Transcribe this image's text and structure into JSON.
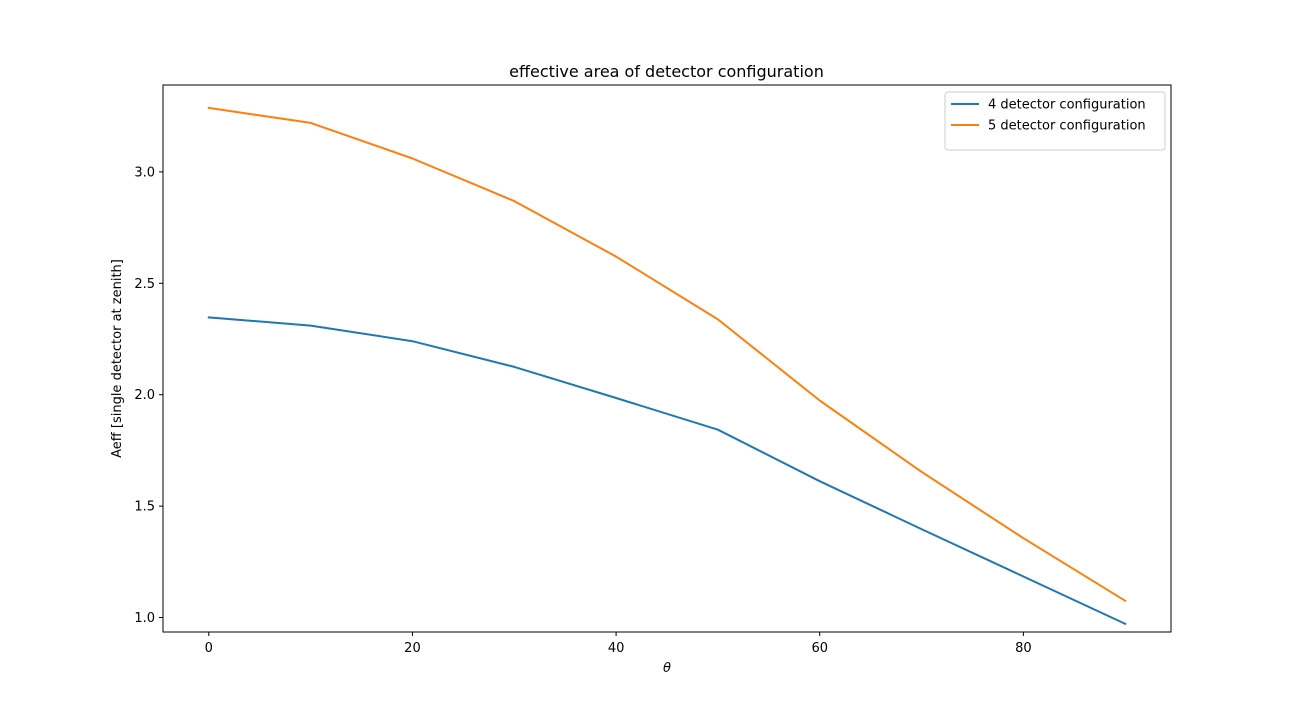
{
  "chart_data": {
    "type": "line",
    "title": "effective area of detector configuration",
    "xlabel": "θ",
    "ylabel": "Aeff [single detector at zenith]",
    "xlim": [
      -4.5,
      94.5
    ],
    "ylim": [
      0.935,
      3.39
    ],
    "xticks": [
      0,
      20,
      40,
      60,
      80
    ],
    "yticks": [
      1.0,
      1.5,
      2.0,
      2.5,
      3.0
    ],
    "ytick_labels": [
      "1.0",
      "1.5",
      "2.0",
      "2.5",
      "3.0"
    ],
    "grid": false,
    "legend_position": "top-right",
    "x": [
      0,
      10,
      20,
      30,
      40,
      50,
      60,
      70,
      80,
      90
    ],
    "series": [
      {
        "name": "4 detector configuration",
        "color": "#1f77b4",
        "values": [
          2.347,
          2.31,
          2.24,
          2.125,
          1.985,
          1.843,
          1.612,
          1.397,
          1.184,
          0.972
        ]
      },
      {
        "name": "5 detector configuration",
        "color": "#ff7f0e",
        "values": [
          3.287,
          3.22,
          3.06,
          2.869,
          2.62,
          2.338,
          1.974,
          1.654,
          1.356,
          1.075
        ]
      }
    ]
  }
}
